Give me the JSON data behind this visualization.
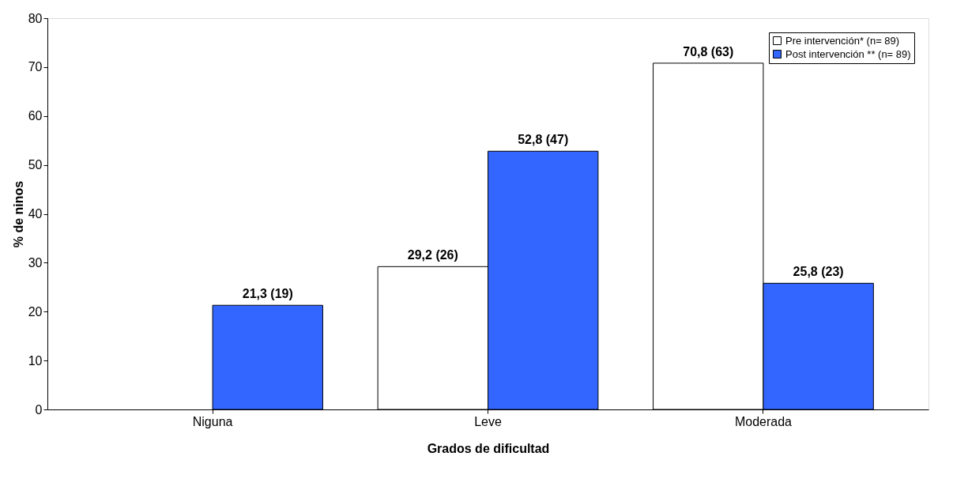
{
  "chart_data": {
    "type": "bar",
    "xlabel": "Grados de dificultad",
    "ylabel": "% de ninos",
    "categories": [
      "Niguna",
      "Leve",
      "Moderada"
    ],
    "series": [
      {
        "name": "Pre intervención* (n= 89)",
        "color": "#ffffff",
        "values": [
          null,
          29.2,
          70.8
        ],
        "value_labels": [
          null,
          "29,2 (26)",
          "70,8 (63)"
        ]
      },
      {
        "name": "Post intervención ** (n= 89)",
        "color": "#3366ff",
        "values": [
          21.3,
          52.8,
          25.8
        ],
        "value_labels": [
          "21,3 (19)",
          "52,8 (47)",
          "25,8 (23)"
        ]
      }
    ],
    "ylim": [
      0,
      80
    ],
    "yticks": [
      0,
      10,
      20,
      30,
      40,
      50,
      60,
      70,
      80
    ],
    "grid": false,
    "legend": "top right"
  }
}
